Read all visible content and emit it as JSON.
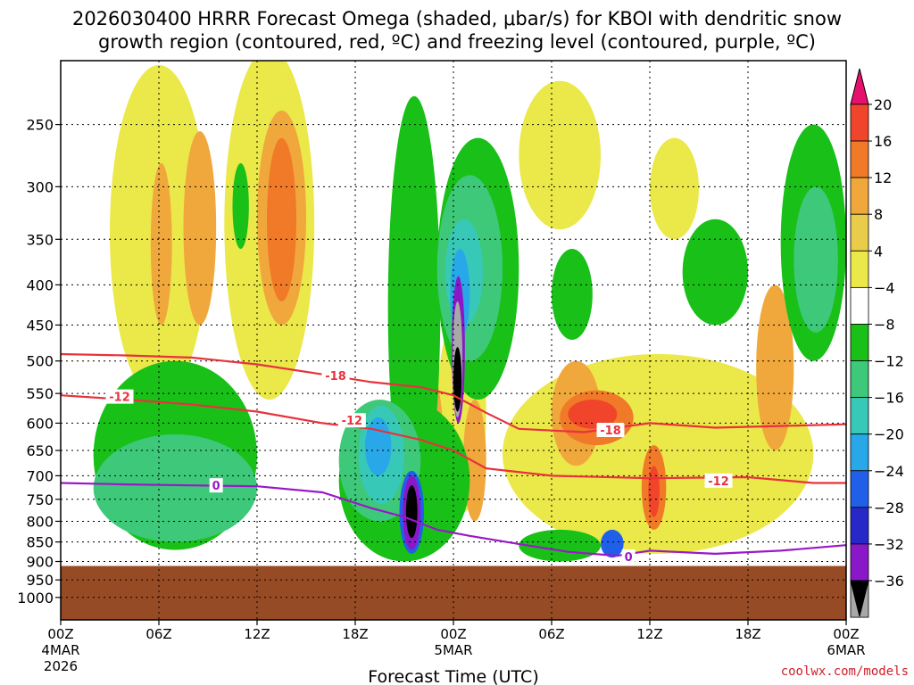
{
  "chart_data": {
    "type": "contour",
    "title_lines": [
      "2026030400 HRRR Forecast Omega (shaded, μbar/s) for KBOI with dendritic snow",
      "growth region (contoured, red, ºC) and freezing level (contoured, purple, ºC)"
    ],
    "xlabel": "Forecast Time (UTC)",
    "ylabel": "",
    "credit": "coolwx.com/models",
    "x_range_hours": [
      0,
      48
    ],
    "y_range_hpa": [
      200,
      1020
    ],
    "y_scale": "log-pressure",
    "grid": true,
    "y_ticks": [
      250,
      300,
      350,
      400,
      450,
      500,
      550,
      600,
      650,
      700,
      750,
      800,
      850,
      900,
      950,
      1000
    ],
    "x_ticks": [
      {
        "hour": 0,
        "label": "00Z",
        "sub1": "4MAR",
        "sub2": "2026"
      },
      {
        "hour": 6,
        "label": "06Z",
        "sub1": "",
        "sub2": ""
      },
      {
        "hour": 12,
        "label": "12Z",
        "sub1": "",
        "sub2": ""
      },
      {
        "hour": 18,
        "label": "18Z",
        "sub1": "",
        "sub2": ""
      },
      {
        "hour": 24,
        "label": "00Z",
        "sub1": "5MAR",
        "sub2": ""
      },
      {
        "hour": 30,
        "label": "06Z",
        "sub1": "",
        "sub2": ""
      },
      {
        "hour": 36,
        "label": "12Z",
        "sub1": "",
        "sub2": ""
      },
      {
        "hour": 42,
        "label": "18Z",
        "sub1": "",
        "sub2": ""
      },
      {
        "hour": 48,
        "label": "00Z",
        "sub1": "6MAR",
        "sub2": ""
      }
    ],
    "colorbar": {
      "labels": [
        "20",
        "16",
        "12",
        "8",
        "4",
        "−4",
        "−8",
        "−12",
        "−16",
        "−20",
        "−24",
        "−28",
        "−32",
        "−36"
      ],
      "colors": [
        "#e8106e",
        "#f0452a",
        "#f07a28",
        "#f0a83c",
        "#e8cc4a",
        "#ebe84a",
        "#ffffff",
        "#18c018",
        "#3ec87a",
        "#38c8b8",
        "#28a8e8",
        "#2060e8",
        "#2828c8",
        "#8a18c8",
        "#a8a8a8",
        "#000000"
      ]
    },
    "terrain": {
      "surface_hpa": 912,
      "color": "#964b25"
    },
    "freezing_level": {
      "name": "0",
      "color": "#9a18c8",
      "points": [
        [
          0,
          715
        ],
        [
          4,
          718
        ],
        [
          8,
          720
        ],
        [
          12,
          722
        ],
        [
          16,
          735
        ],
        [
          19,
          770
        ],
        [
          21,
          790
        ],
        [
          23,
          820
        ],
        [
          25,
          835
        ],
        [
          28,
          855
        ],
        [
          31,
          875
        ],
        [
          34,
          885
        ],
        [
          36,
          872
        ],
        [
          40,
          880
        ],
        [
          44,
          872
        ],
        [
          48,
          858
        ]
      ],
      "labels": [
        {
          "hour": 9.5,
          "hpa": 720,
          "text": "0"
        },
        {
          "hour": 34.7,
          "hpa": 887,
          "text": "0"
        }
      ]
    },
    "dgz_contours": [
      {
        "name": "-12",
        "color": "#e8323c",
        "points": [
          [
            0,
            553
          ],
          [
            4,
            560
          ],
          [
            8,
            568
          ],
          [
            12,
            580
          ],
          [
            16,
            600
          ],
          [
            19,
            610
          ],
          [
            22,
            630
          ],
          [
            24,
            650
          ],
          [
            26,
            685
          ],
          [
            30,
            700
          ],
          [
            36,
            705
          ],
          [
            42,
            703
          ],
          [
            46,
            715
          ],
          [
            48,
            715
          ]
        ],
        "labels": [
          {
            "hour": 3.6,
            "hpa": 555,
            "text": "-12"
          },
          {
            "hour": 17.8,
            "hpa": 595,
            "text": "-12"
          },
          {
            "hour": 40.2,
            "hpa": 710,
            "text": "-12"
          }
        ]
      },
      {
        "name": "-18",
        "color": "#e8323c",
        "points": [
          [
            0,
            490
          ],
          [
            4,
            492
          ],
          [
            8,
            495
          ],
          [
            12,
            505
          ],
          [
            16,
            520
          ],
          [
            19,
            532
          ],
          [
            22,
            540
          ],
          [
            24,
            553
          ],
          [
            26,
            582
          ],
          [
            28,
            610
          ],
          [
            32,
            616
          ],
          [
            36,
            600
          ],
          [
            40,
            608
          ],
          [
            44,
            605
          ],
          [
            48,
            602
          ]
        ],
        "labels": [
          {
            "hour": 16.8,
            "hpa": 522,
            "text": "-18"
          },
          {
            "hour": 33.6,
            "hpa": 612,
            "text": "-18"
          }
        ]
      }
    ],
    "omega_regions": [
      {
        "level": "4",
        "h0": 3,
        "h1": 9,
        "p0": 210,
        "p1": 560
      },
      {
        "level": "4",
        "h0": 10,
        "h1": 15.5,
        "p0": 200,
        "p1": 560
      },
      {
        "level": "4",
        "h0": 28,
        "h1": 33,
        "p0": 220,
        "p1": 340
      },
      {
        "level": "4",
        "h0": 36,
        "h1": 39,
        "p0": 260,
        "p1": 350
      },
      {
        "level": "4",
        "h0": 27,
        "h1": 46,
        "p0": 490,
        "p1": 880
      },
      {
        "level": "4",
        "h0": 23,
        "h1": 26,
        "p0": 430,
        "p1": 780
      },
      {
        "level": "8",
        "h0": 5.5,
        "h1": 6.8,
        "p0": 280,
        "p1": 450
      },
      {
        "level": "8",
        "h0": 7.5,
        "h1": 9.5,
        "p0": 255,
        "p1": 450
      },
      {
        "level": "8",
        "h0": 12,
        "h1": 15,
        "p0": 240,
        "p1": 450
      },
      {
        "level": "8",
        "h0": 30,
        "h1": 33,
        "p0": 500,
        "p1": 680
      },
      {
        "level": "8",
        "h0": 22,
        "h1": 23.4,
        "p0": 520,
        "p1": 830
      },
      {
        "level": "8",
        "h0": 24.6,
        "h1": 26,
        "p0": 560,
        "p1": 800
      },
      {
        "level": "8",
        "h0": 42.5,
        "h1": 44.8,
        "p0": 400,
        "p1": 650
      },
      {
        "level": "12",
        "h0": 12.6,
        "h1": 14.4,
        "p0": 260,
        "p1": 420
      },
      {
        "level": "12",
        "h0": 30.5,
        "h1": 35,
        "p0": 545,
        "p1": 640
      },
      {
        "level": "12",
        "h0": 35.5,
        "h1": 37,
        "p0": 640,
        "p1": 820
      },
      {
        "level": "12",
        "h0": 22.5,
        "h1": 23.2,
        "p0": 700,
        "p1": 860
      },
      {
        "level": "16",
        "h0": 31,
        "h1": 34,
        "p0": 560,
        "p1": 610
      },
      {
        "level": "16",
        "h0": 35.9,
        "h1": 36.6,
        "p0": 680,
        "p1": 790
      },
      {
        "level": "20",
        "h0": 19.3,
        "h1": 20.3,
        "p0": 815,
        "p1": 885
      },
      {
        "level": "-4",
        "h0": 2,
        "h1": 12,
        "p0": 500,
        "p1": 870
      },
      {
        "level": "-4",
        "h0": 10.5,
        "h1": 11.5,
        "p0": 280,
        "p1": 360
      },
      {
        "level": "-4",
        "h0": 17,
        "h1": 25,
        "p0": 560,
        "p1": 900
      },
      {
        "level": "-4",
        "h0": 20,
        "h1": 23.2,
        "p0": 230,
        "p1": 790
      },
      {
        "level": "-4",
        "h0": 23,
        "h1": 28,
        "p0": 260,
        "p1": 560
      },
      {
        "level": "-4",
        "h0": 30,
        "h1": 32.5,
        "p0": 360,
        "p1": 470
      },
      {
        "level": "-4",
        "h0": 38,
        "h1": 42,
        "p0": 330,
        "p1": 450
      },
      {
        "level": "-4",
        "h0": 44,
        "h1": 48,
        "p0": 250,
        "p1": 500
      },
      {
        "level": "-4",
        "h0": 28,
        "h1": 33,
        "p0": 820,
        "p1": 900
      },
      {
        "level": "-8",
        "h0": 2,
        "h1": 12,
        "p0": 620,
        "p1": 850
      },
      {
        "level": "-8",
        "h0": 17,
        "h1": 22,
        "p0": 560,
        "p1": 800
      },
      {
        "level": "-8",
        "h0": 23,
        "h1": 27,
        "p0": 290,
        "p1": 500
      },
      {
        "level": "-8",
        "h0": 44.8,
        "h1": 47.5,
        "p0": 300,
        "p1": 460
      },
      {
        "level": "-12",
        "h0": 18.2,
        "h1": 21,
        "p0": 570,
        "p1": 760
      },
      {
        "level": "-12",
        "h0": 23.5,
        "h1": 25.8,
        "p0": 330,
        "p1": 450
      },
      {
        "level": "-16",
        "h0": 18.6,
        "h1": 20.2,
        "p0": 590,
        "p1": 700
      },
      {
        "level": "-16",
        "h0": 23.8,
        "h1": 25,
        "p0": 360,
        "p1": 470
      },
      {
        "level": "-20",
        "h0": 20.7,
        "h1": 22.2,
        "p0": 690,
        "p1": 880
      },
      {
        "level": "-20",
        "h0": 33,
        "h1": 34.4,
        "p0": 820,
        "p1": 890
      },
      {
        "level": "-24",
        "h0": 23.9,
        "h1": 24.7,
        "p0": 390,
        "p1": 600
      },
      {
        "level": "-28",
        "h0": 20.9,
        "h1": 22,
        "p0": 700,
        "p1": 870
      },
      {
        "level": "-32",
        "h0": 23.95,
        "h1": 24.55,
        "p0": 420,
        "p1": 590
      },
      {
        "level": "-36",
        "h0": 21.1,
        "h1": 21.8,
        "p0": 720,
        "p1": 840
      },
      {
        "level": "-36",
        "h0": 24,
        "h1": 24.5,
        "p0": 480,
        "p1": 580
      }
    ]
  }
}
